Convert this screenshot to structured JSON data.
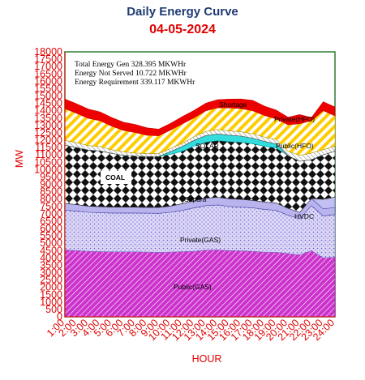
{
  "header": {
    "title": "Daily Energy Curve",
    "date": "04-05-2024"
  },
  "summary": {
    "gen": "Total Energy Gen 328.395 MKWHr",
    "not_served": "Energy Not Served  10.722 MKWHr",
    "requirement": "Energy Requirement     339.117 MKWHr"
  },
  "colors": {
    "tick": "#e00000",
    "title": "#1f3b73",
    "frame": "#2e7d32"
  },
  "chart_data": {
    "type": "area",
    "stacked": true,
    "xlabel": "HOUR",
    "ylabel": "MW",
    "ylim": [
      0,
      18000
    ],
    "yticks": [
      "0",
      "500",
      "1000",
      "1500",
      "2000",
      "2500",
      "3000",
      "3500",
      "4000",
      "4500",
      "5000",
      "5500",
      "6000",
      "6500",
      "7000",
      "7500",
      "8000",
      "8500",
      "9000",
      "9500",
      "10000",
      "10500",
      "11000",
      "11500",
      "12000",
      "12500",
      "13000",
      "13500",
      "14000",
      "14500",
      "15000",
      "15500",
      "16000",
      "16500",
      "17000",
      "17500",
      "18000"
    ],
    "xticks": [
      "1:00",
      "2:00",
      "3:00",
      "4:00",
      "5:00",
      "6:00",
      "7:00",
      "8:00",
      "9:00",
      "10:00",
      "11:00",
      "12:00",
      "13:00",
      "14:00",
      "15:00",
      "16:00",
      "17:00",
      "18:00",
      "19:00",
      "20:00",
      "21:00",
      "22:00",
      "23:00",
      "24:00"
    ],
    "x": [
      1,
      2,
      3,
      4,
      5,
      6,
      7,
      8,
      9,
      10,
      11,
      12,
      13,
      14,
      15,
      16,
      17,
      18,
      19,
      20,
      21,
      22,
      23,
      24
    ],
    "series": [
      {
        "name": "Public(GAS)",
        "color": "#cc33cc",
        "values": [
          4550,
          4500,
          4450,
          4430,
          4420,
          4420,
          4420,
          4400,
          4380,
          4400,
          4430,
          4450,
          4530,
          4550,
          4500,
          4480,
          4450,
          4400,
          4380,
          4300,
          4200,
          4500,
          4000,
          4050
        ]
      },
      {
        "name": "Private(GAS)",
        "color": "#9999ee",
        "values": [
          2700,
          2680,
          2650,
          2640,
          2630,
          2630,
          2630,
          2640,
          2650,
          2700,
          2800,
          2950,
          3020,
          3050,
          3000,
          2980,
          2950,
          2900,
          2850,
          2600,
          2450,
          3050,
          2850,
          2900
        ]
      },
      {
        "name": "Sapura",
        "color": "#9a9ae0",
        "values": [
          460,
          440,
          420,
          410,
          400,
          395,
          395,
          395,
          400,
          420,
          460,
          490,
          510,
          520,
          520,
          515,
          510,
          500,
          500,
          470,
          450,
          480,
          480,
          480
        ]
      },
      {
        "name": "HVDC",
        "color": "#b0b0ee",
        "values": [
          0,
          0,
          0,
          0,
          0,
          0,
          0,
          0,
          0,
          0,
          0,
          0,
          0,
          0,
          0,
          0,
          0,
          0,
          0,
          0,
          0,
          0,
          650,
          700
        ]
      },
      {
        "name": "COAL",
        "color": "#222222",
        "values": [
          3950,
          3880,
          3810,
          3790,
          3650,
          3520,
          3480,
          3450,
          3470,
          3520,
          3560,
          3700,
          3800,
          3850,
          3880,
          3880,
          3850,
          3780,
          3740,
          3580,
          3470,
          2650,
          3030,
          3120
        ]
      },
      {
        "name": "SOLAR",
        "color": "#33dddd",
        "values": [
          0,
          0,
          0,
          0,
          0,
          0,
          0,
          0,
          0,
          180,
          320,
          400,
          450,
          450,
          440,
          420,
          380,
          330,
          280,
          0,
          0,
          0,
          0,
          0
        ]
      },
      {
        "name": "Public(HFO)",
        "color": "#e6e6e6",
        "values": [
          330,
          330,
          300,
          300,
          250,
          250,
          200,
          200,
          200,
          220,
          220,
          250,
          280,
          300,
          300,
          300,
          300,
          300,
          300,
          300,
          400,
          450,
          350,
          350
        ]
      },
      {
        "name": "Private(HFO)",
        "color": "#ffcc00",
        "values": [
          2150,
          2000,
          1850,
          1750,
          1600,
          1450,
          1390,
          1250,
          1200,
          1250,
          1320,
          1280,
          1400,
          1490,
          1550,
          1570,
          1560,
          1470,
          1390,
          1800,
          2150,
          2200,
          2650,
          2050
        ]
      },
      {
        "name": "Shortage",
        "color": "#ee0000",
        "values": [
          650,
          640,
          630,
          600,
          580,
          550,
          550,
          500,
          450,
          450,
          490,
          500,
          520,
          540,
          600,
          650,
          700,
          630,
          600,
          500,
          620,
          200,
          600,
          600
        ]
      }
    ]
  }
}
